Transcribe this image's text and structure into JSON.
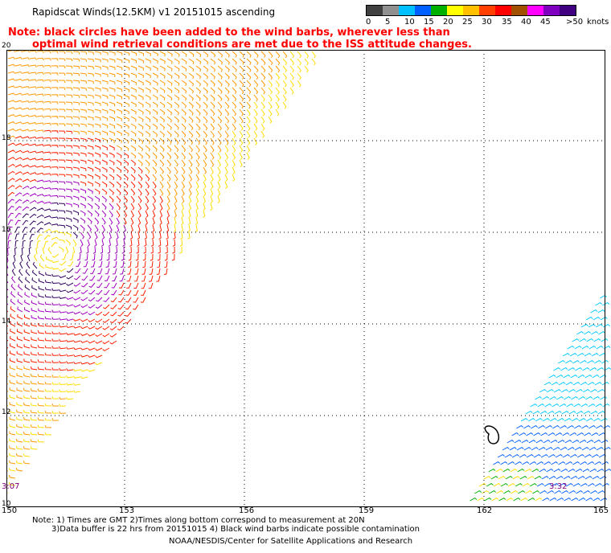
{
  "header": {
    "title": "Rapidscat Winds(12.5KM) v1 20151015 ascending",
    "note_line1": "Note: black circles have been added to the wind barbs, wherever less than",
    "note_line2": "optimal wind retrieval conditions are met due to the ISS attitude changes."
  },
  "colorbar": {
    "unit": "knots",
    "labels": [
      "0",
      "5",
      "10",
      "15",
      "20",
      "25",
      "30",
      "35",
      "40",
      "45",
      ">50"
    ],
    "colors": [
      "#404040",
      "#909090",
      "#00c0ff",
      "#0060ff",
      "#00b000",
      "#ffff00",
      "#ffc000",
      "#ff4000",
      "#ff0000",
      "#a05000",
      "#ff00ff",
      "#8000c0",
      "#400080"
    ]
  },
  "map": {
    "y_labels": [
      "20",
      "18",
      "16",
      "14",
      "12",
      "10"
    ],
    "x_labels": [
      "150",
      "153",
      "156",
      "159",
      "162",
      "165"
    ],
    "timestamps": [
      "3:07",
      "3:32"
    ],
    "colors": {
      "grid": "#000000",
      "swath_orange": "#ff9900",
      "swath_yellow": "#ffdd00",
      "swath_red": "#ff2000",
      "swath_purple": "#a000c0",
      "swath_dark": "#300060",
      "swath2_cyan": "#00c8ff",
      "swath2_blue": "#0060ff",
      "swath2_green": "#00b000"
    }
  },
  "footer": {
    "line1": "Note: 1) Times are GMT 2)Times along bottom correspond to measurement at 20N",
    "line2": "3)Data buffer is 22 hrs from 20151015 4) Black wind barbs indicate possible contamination",
    "credit": "NOAA/NESDIS/Center for Satellite Applications and Research"
  }
}
